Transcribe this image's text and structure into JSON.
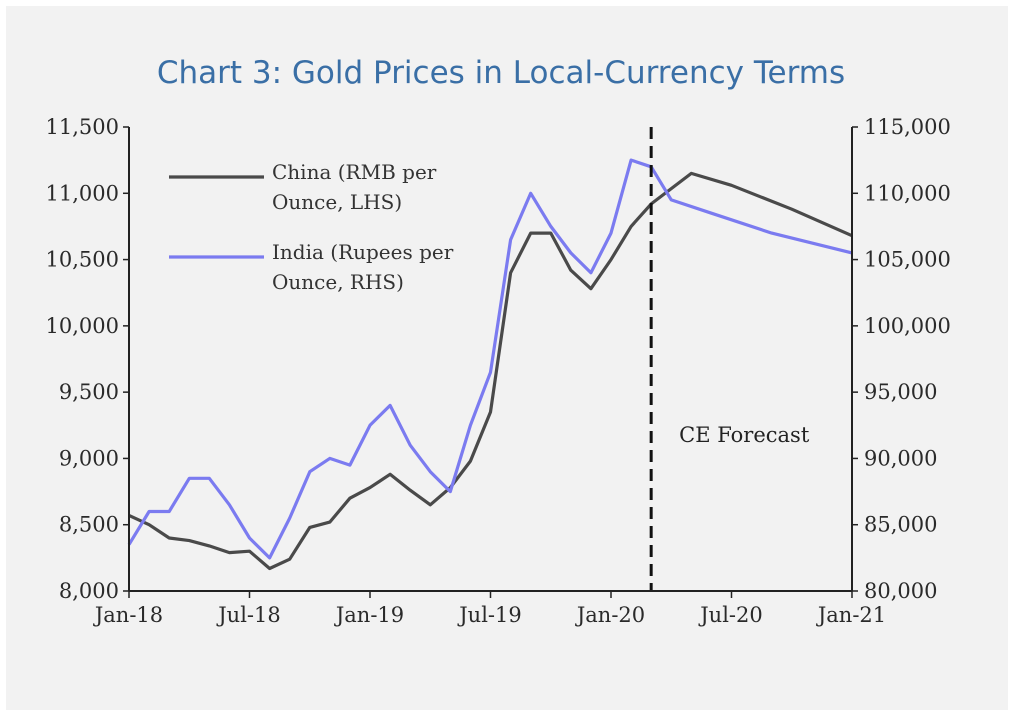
{
  "chart_data": {
    "type": "line",
    "title": "Chart 3: Gold Prices in Local-Currency Terms",
    "x_ticks": [
      "Jan-18",
      "Jul-18",
      "Jan-19",
      "Jul-19",
      "Jan-20",
      "Jul-20",
      "Jan-21"
    ],
    "xlim": [
      "2018-01",
      "2021-01"
    ],
    "y_left": {
      "ticks": [
        "8,000",
        "8,500",
        "9,000",
        "9,500",
        "10,000",
        "10,500",
        "11,000",
        "11,500"
      ],
      "ylim": [
        8000,
        11500
      ]
    },
    "y_right": {
      "ticks": [
        "80,000",
        "85,000",
        "90,000",
        "95,000",
        "100,000",
        "105,000",
        "110,000",
        "115,000"
      ],
      "ylim": [
        80000,
        115000
      ]
    },
    "legend": [
      {
        "label_lines": [
          "China (RMB per",
          "Ounce, LHS)"
        ],
        "color": "#4a4a4a"
      },
      {
        "label_lines": [
          "India (Rupees per",
          "Ounce, RHS)"
        ],
        "color": "#7b7bf0"
      }
    ],
    "forecast_marker": {
      "x": "2020-03",
      "label": "CE Forecast"
    },
    "series": [
      {
        "name": "China (RMB per Ounce, LHS)",
        "axis": "left",
        "color": "#4a4a4a",
        "x": [
          "2018-01",
          "2018-02",
          "2018-03",
          "2018-04",
          "2018-05",
          "2018-06",
          "2018-07",
          "2018-08",
          "2018-09",
          "2018-10",
          "2018-11",
          "2018-12",
          "2019-01",
          "2019-02",
          "2019-03",
          "2019-04",
          "2019-05",
          "2019-06",
          "2019-07",
          "2019-08",
          "2019-09",
          "2019-10",
          "2019-11",
          "2019-12",
          "2020-01",
          "2020-02",
          "2020-03",
          "2020-05",
          "2020-07",
          "2020-10",
          "2021-01"
        ],
        "values": [
          8570,
          8500,
          8400,
          8380,
          8340,
          8290,
          8300,
          8170,
          8240,
          8480,
          8520,
          8700,
          8780,
          8880,
          8760,
          8650,
          8780,
          8980,
          9350,
          10400,
          10700,
          10700,
          10420,
          10280,
          10500,
          10750,
          10920,
          11150,
          11060,
          10880,
          10680
        ]
      },
      {
        "name": "India (Rupees per Ounce, RHS)",
        "axis": "right",
        "color": "#7b7bf0",
        "x": [
          "2018-01",
          "2018-02",
          "2018-03",
          "2018-04",
          "2018-05",
          "2018-06",
          "2018-07",
          "2018-08",
          "2018-09",
          "2018-10",
          "2018-11",
          "2018-12",
          "2019-01",
          "2019-02",
          "2019-03",
          "2019-04",
          "2019-05",
          "2019-06",
          "2019-07",
          "2019-08",
          "2019-09",
          "2019-10",
          "2019-11",
          "2019-12",
          "2020-01",
          "2020-02",
          "2020-03",
          "2020-04",
          "2020-06",
          "2020-09",
          "2021-01"
        ],
        "values": [
          83500,
          86000,
          86000,
          88500,
          88500,
          86500,
          84000,
          82500,
          85500,
          89000,
          90000,
          89500,
          92500,
          94000,
          91000,
          89000,
          87500,
          92500,
          96500,
          106500,
          110000,
          107500,
          105500,
          104000,
          107000,
          112500,
          112000,
          109500,
          108500,
          107000,
          105500
        ]
      }
    ]
  }
}
